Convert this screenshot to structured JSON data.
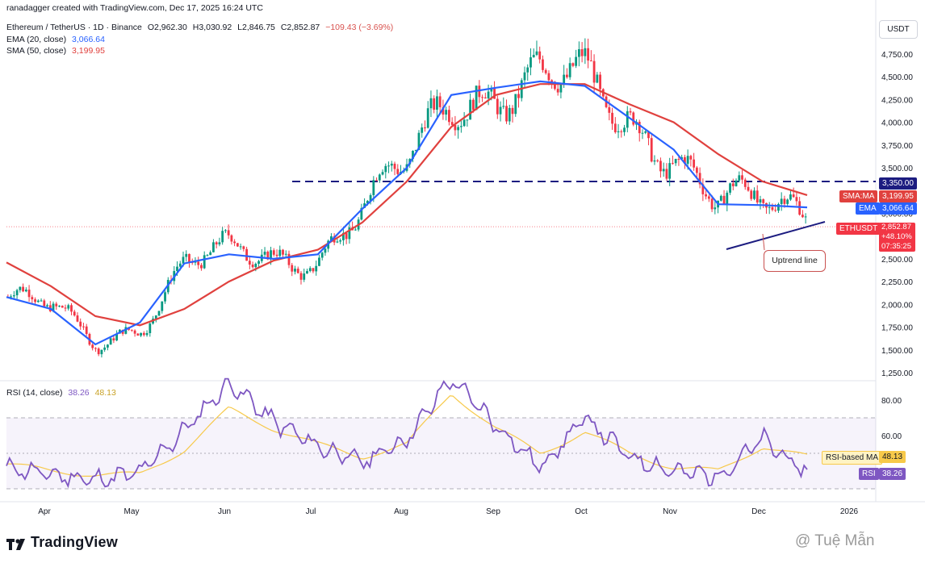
{
  "header": {
    "author_line": "ranadagger created with TradingView.com, Dec 17, 2025 16:24 UTC",
    "symbol": "Ethereum / TetherUS · 1D · Binance",
    "open": "O2,962.30",
    "high": "H3,030.92",
    "low": "L2,846.75",
    "close": "C2,852.87",
    "change": "−109.43 (−3.69%)",
    "ema_label": "EMA (20, close)",
    "ema_value": "3,066.64",
    "sma_label": "SMA (50, close)",
    "sma_value": "3,199.95",
    "rsi_label": "RSI (14, close)",
    "rsi_value": "38.26",
    "rsi_ma_value": "48.13"
  },
  "currency_button": "USDT",
  "price_axis_labels": [
    "4,750.00",
    "4,500.00",
    "4,250.00",
    "4,000.00",
    "3,750.00",
    "3,500.00",
    "3,000.00",
    "2,500.00",
    "2,250.00",
    "2,000.00",
    "1,750.00",
    "1,500.00",
    "1,250.00"
  ],
  "price_tags": {
    "resistance": "3,350.00",
    "sma_name": "SMA:MA",
    "sma": "3,199.95",
    "ema_name": "EMA",
    "ema": "3,066.64",
    "sym_name": "ETHUSDT",
    "price": "2,852.87",
    "pct": "+48.10%",
    "countdown": "07:35:25"
  },
  "rsi_axis_labels": [
    "80.00",
    "60.00"
  ],
  "rsi_tags": {
    "ma_name": "RSI-based MA",
    "ma": "48.13",
    "rsi_name": "RSI",
    "rsi": "38.26"
  },
  "time_labels": [
    "Apr",
    "May",
    "Jun",
    "Jul",
    "Aug",
    "Sep",
    "Oct",
    "Nov",
    "Dec",
    "2026"
  ],
  "annotation": "Uptrend line",
  "footer": {
    "brand": "TradingView",
    "watermark": "@ Tuệ Mẫn"
  },
  "colors": {
    "up": "#089981",
    "down": "#f23645",
    "ema": "#2962ff",
    "sma": "#e0413e",
    "rsi": "#7e57c2",
    "rsi_ma": "#f7c94a"
  },
  "chart_data": {
    "type": "candlestick",
    "ylim": [
      1250,
      4850
    ],
    "rsi_ylim": [
      20,
      95
    ],
    "resistance_level": 3350,
    "series": [
      {
        "name": "EMA",
        "x": [
          "Mar 25",
          "Apr 5",
          "Apr 20",
          "May 1",
          "May 15",
          "Jun 1",
          "Jun 20",
          "Jul 5",
          "Jul 20",
          "Aug 5",
          "Aug 20",
          "Sep 5",
          "Sep 20",
          "Oct 5",
          "Oct 20",
          "Nov 5",
          "Nov 20",
          "Dec 5",
          "Dec 16"
        ],
        "values": [
          2080,
          1950,
          1560,
          1800,
          2450,
          2550,
          2500,
          2550,
          3050,
          3500,
          4300,
          4380,
          4450,
          4400,
          4050,
          3700,
          3100,
          3090,
          3066
        ]
      },
      {
        "name": "SMA",
        "x": [
          "Mar 25",
          "Apr 5",
          "Apr 20",
          "May 1",
          "May 15",
          "Jun 1",
          "Jun 20",
          "Jul 5",
          "Jul 20",
          "Aug 5",
          "Aug 20",
          "Sep 5",
          "Sep 20",
          "Oct 5",
          "Oct 20",
          "Nov 5",
          "Nov 20",
          "Dec 5",
          "Dec 16"
        ],
        "values": [
          2460,
          2200,
          1870,
          1770,
          1950,
          2250,
          2480,
          2600,
          2900,
          3350,
          3950,
          4300,
          4420,
          4420,
          4200,
          4000,
          3650,
          3350,
          3200
        ]
      },
      {
        "name": "RSI",
        "values": [
          42,
          38,
          35,
          39,
          63,
          90,
          68,
          54,
          45,
          58,
          92,
          66,
          42,
          70,
          48,
          40,
          37,
          58,
          38
        ]
      },
      {
        "name": "RSI-based MA",
        "values": [
          44,
          40,
          38,
          38,
          52,
          75,
          64,
          55,
          48,
          55,
          84,
          64,
          50,
          62,
          50,
          42,
          40,
          54,
          48
        ]
      }
    ]
  }
}
